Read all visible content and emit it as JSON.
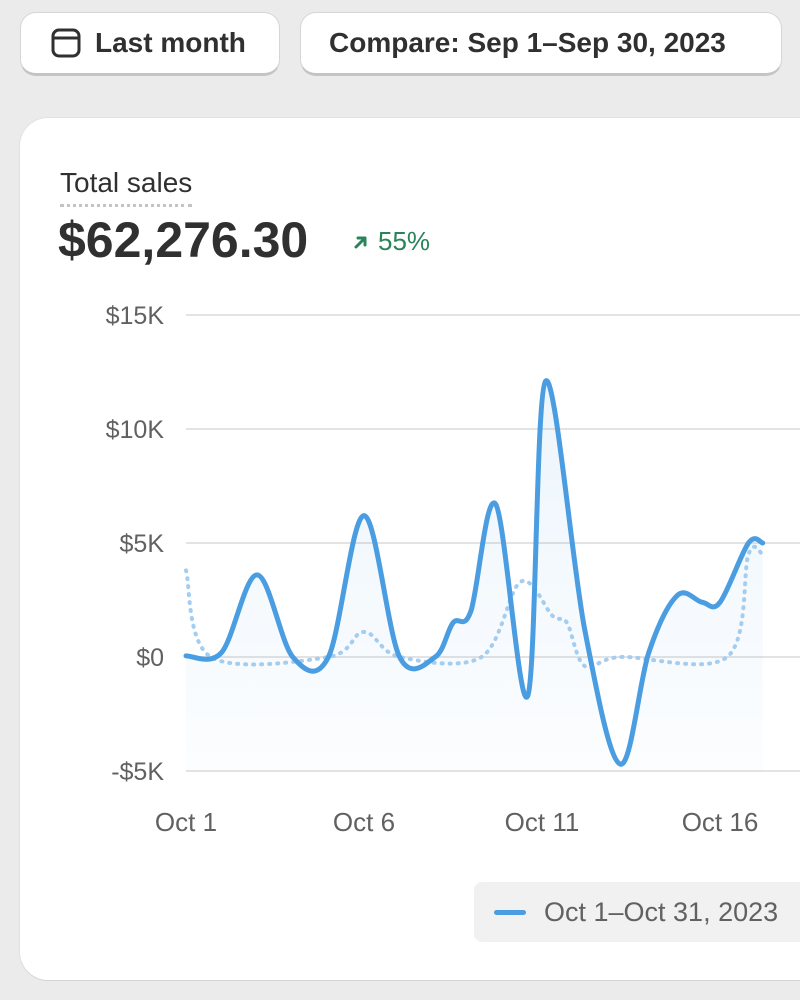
{
  "toolbar": {
    "date_range_label": "Last month",
    "compare_label": "Compare: Sep 1–Sep 30, 2023"
  },
  "icons": {
    "date_range": "calendar-icon",
    "change": "arrow-up-right-icon"
  },
  "metric": {
    "label": "Total sales",
    "value": "$62,276.30",
    "change": "55%",
    "change_direction": "up"
  },
  "colors": {
    "primary_series": "#4a9de0",
    "comparison_series": "#a4cdf0",
    "positive": "#29845a",
    "gridline": "#e3e3e3"
  },
  "legend": {
    "primary_label": "Oct 1–Oct 31, 2023"
  },
  "chart_data": {
    "type": "area",
    "title": "",
    "xlabel": "",
    "ylabel": "",
    "ylim": [
      -5000,
      15000
    ],
    "y_ticks": [
      -5000,
      0,
      5000,
      10000,
      15000
    ],
    "y_tick_labels": [
      "-$5K",
      "$0",
      "$5K",
      "$10K",
      "$15K"
    ],
    "x_tick_labels": [
      "Oct 1",
      "Oct 6",
      "Oct 11",
      "Oct 16"
    ],
    "x_tick_days": [
      1,
      6,
      11,
      16
    ],
    "grid": true,
    "legend_position": "bottom-right",
    "series": [
      {
        "name": "Oct 1–Oct 31, 2023",
        "style": "solid",
        "points": [
          {
            "x": 1,
            "y": 50
          },
          {
            "x": 2,
            "y": 200
          },
          {
            "x": 3,
            "y": 3600
          },
          {
            "x": 4,
            "y": 0
          },
          {
            "x": 5,
            "y": 0
          },
          {
            "x": 6,
            "y": 6200
          },
          {
            "x": 7,
            "y": 0
          },
          {
            "x": 8,
            "y": 0
          },
          {
            "x": 8.5,
            "y": 1500
          },
          {
            "x": 9,
            "y": 2000
          },
          {
            "x": 9.7,
            "y": 6700
          },
          {
            "x": 10.6,
            "y": -1700
          },
          {
            "x": 11.1,
            "y": 12100
          },
          {
            "x": 12.2,
            "y": 1200
          },
          {
            "x": 13.2,
            "y": -4700
          },
          {
            "x": 14,
            "y": 200
          },
          {
            "x": 14.8,
            "y": 2700
          },
          {
            "x": 15.5,
            "y": 2400
          },
          {
            "x": 16,
            "y": 2400
          },
          {
            "x": 16.8,
            "y": 5000
          },
          {
            "x": 17.2,
            "y": 5000
          }
        ]
      },
      {
        "name": "Sep 1–Sep 30, 2023",
        "style": "dotted",
        "points": [
          {
            "x": 1,
            "y": 3800
          },
          {
            "x": 1.7,
            "y": 0
          },
          {
            "x": 5,
            "y": 0
          },
          {
            "x": 6,
            "y": 1100
          },
          {
            "x": 7,
            "y": 0
          },
          {
            "x": 9.3,
            "y": 0
          },
          {
            "x": 10.4,
            "y": 3300
          },
          {
            "x": 11.3,
            "y": 1800
          },
          {
            "x": 11.7,
            "y": 1500
          },
          {
            "x": 12.2,
            "y": -400
          },
          {
            "x": 13.2,
            "y": 0
          },
          {
            "x": 16.2,
            "y": 0
          },
          {
            "x": 16.8,
            "y": 4500
          },
          {
            "x": 17.2,
            "y": 4500
          }
        ]
      }
    ]
  }
}
